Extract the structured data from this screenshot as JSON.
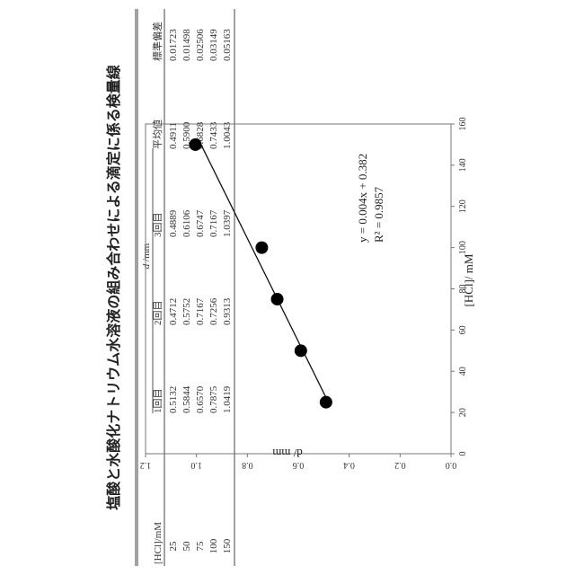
{
  "title": "塩酸と水酸化ナトリウム水溶液の組み合わせによる滴定に係る検量線",
  "table": {
    "group_header": "d /mm",
    "columns": [
      "[HCl]/mM",
      "1回目",
      "2回目",
      "3回目",
      "平均値",
      "標準偏差"
    ],
    "rows": [
      [
        "25",
        "0.5132",
        "0.4712",
        "0.4889",
        "0.4911",
        "0.01723"
      ],
      [
        "50",
        "0.5844",
        "0.5752",
        "0.6106",
        "0.5900",
        "0.01498"
      ],
      [
        "75",
        "0.6570",
        "0.7167",
        "0.6747",
        "0.6828",
        "0.02506"
      ],
      [
        "100",
        "0.7875",
        "0.7256",
        "0.7167",
        "0.7433",
        "0.03149"
      ],
      [
        "150",
        "1.0419",
        "0.9313",
        "1.0397",
        "1.0043",
        "0.05163"
      ]
    ]
  },
  "chart_data": {
    "type": "scatter",
    "x": [
      25,
      50,
      75,
      100,
      150
    ],
    "y": [
      0.4911,
      0.59,
      0.6828,
      0.7433,
      1.0043
    ],
    "xlabel": "[HCl]/ mM",
    "ylabel": "d/ mm",
    "xlim": [
      0,
      160
    ],
    "ylim": [
      0,
      1.2
    ],
    "xticks": [
      0,
      20,
      40,
      60,
      80,
      100,
      120,
      140,
      160
    ],
    "yticks": [
      0,
      0.2,
      0.4,
      0.6,
      0.8,
      1.0,
      1.2
    ],
    "ytick_labels": [
      "0.0",
      "0.2",
      "0.4",
      "0.6",
      "0.8",
      "1.0",
      "1.2"
    ],
    "trendline": {
      "slope": 0.004,
      "intercept": 0.382
    },
    "annotations": [
      "y = 0.004x + 0.382",
      "R² = 0.9857"
    ],
    "grid": false
  }
}
